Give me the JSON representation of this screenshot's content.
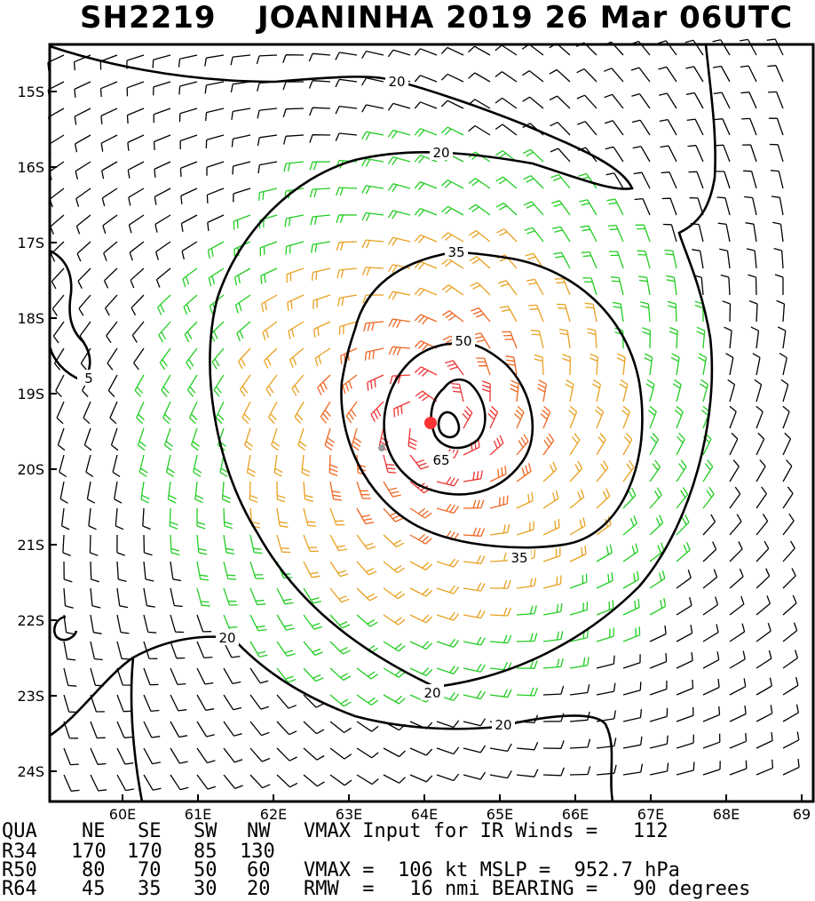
{
  "title": {
    "storm_id": "SH2219",
    "storm_name": "JOANINHA 2019 26 Mar 06UTC"
  },
  "map": {
    "lat_ticks": [
      "15S",
      "16S",
      "17S",
      "18S",
      "19S",
      "20S",
      "21S",
      "22S",
      "23S",
      "24S"
    ],
    "lon_ticks": [
      "60E",
      "61E",
      "62E",
      "63E",
      "64E",
      "65E",
      "66E",
      "67E",
      "68E",
      "69"
    ],
    "contour_labels": [
      "20",
      "20",
      "35",
      "50",
      "65",
      "35",
      "20",
      "20",
      "20",
      "5"
    ],
    "center_marker_color": "#ff3333",
    "barb_colors": {
      "calm": "#000000",
      "gale": "#22cc22",
      "storm": "#e8a020",
      "hurricane": "#ee6622",
      "strong": "#ee3333"
    }
  },
  "table": {
    "header": [
      "QUA",
      "NE",
      "SE",
      "SW",
      "NW"
    ],
    "header_note": "VMAX Input for IR Winds =   112",
    "rows": [
      {
        "label": "R34",
        "values": [
          "170",
          "170",
          "85",
          "130"
        ],
        "note": ""
      },
      {
        "label": "R50",
        "values": [
          "80",
          "70",
          "50",
          "60"
        ],
        "note": "VMAX =  106 kt MSLP =  952.7 hPa"
      },
      {
        "label": "R64",
        "values": [
          "45",
          "35",
          "30",
          "20"
        ],
        "note": "RMW  =   16 nmi BEARING =   90 degrees"
      }
    ]
  }
}
